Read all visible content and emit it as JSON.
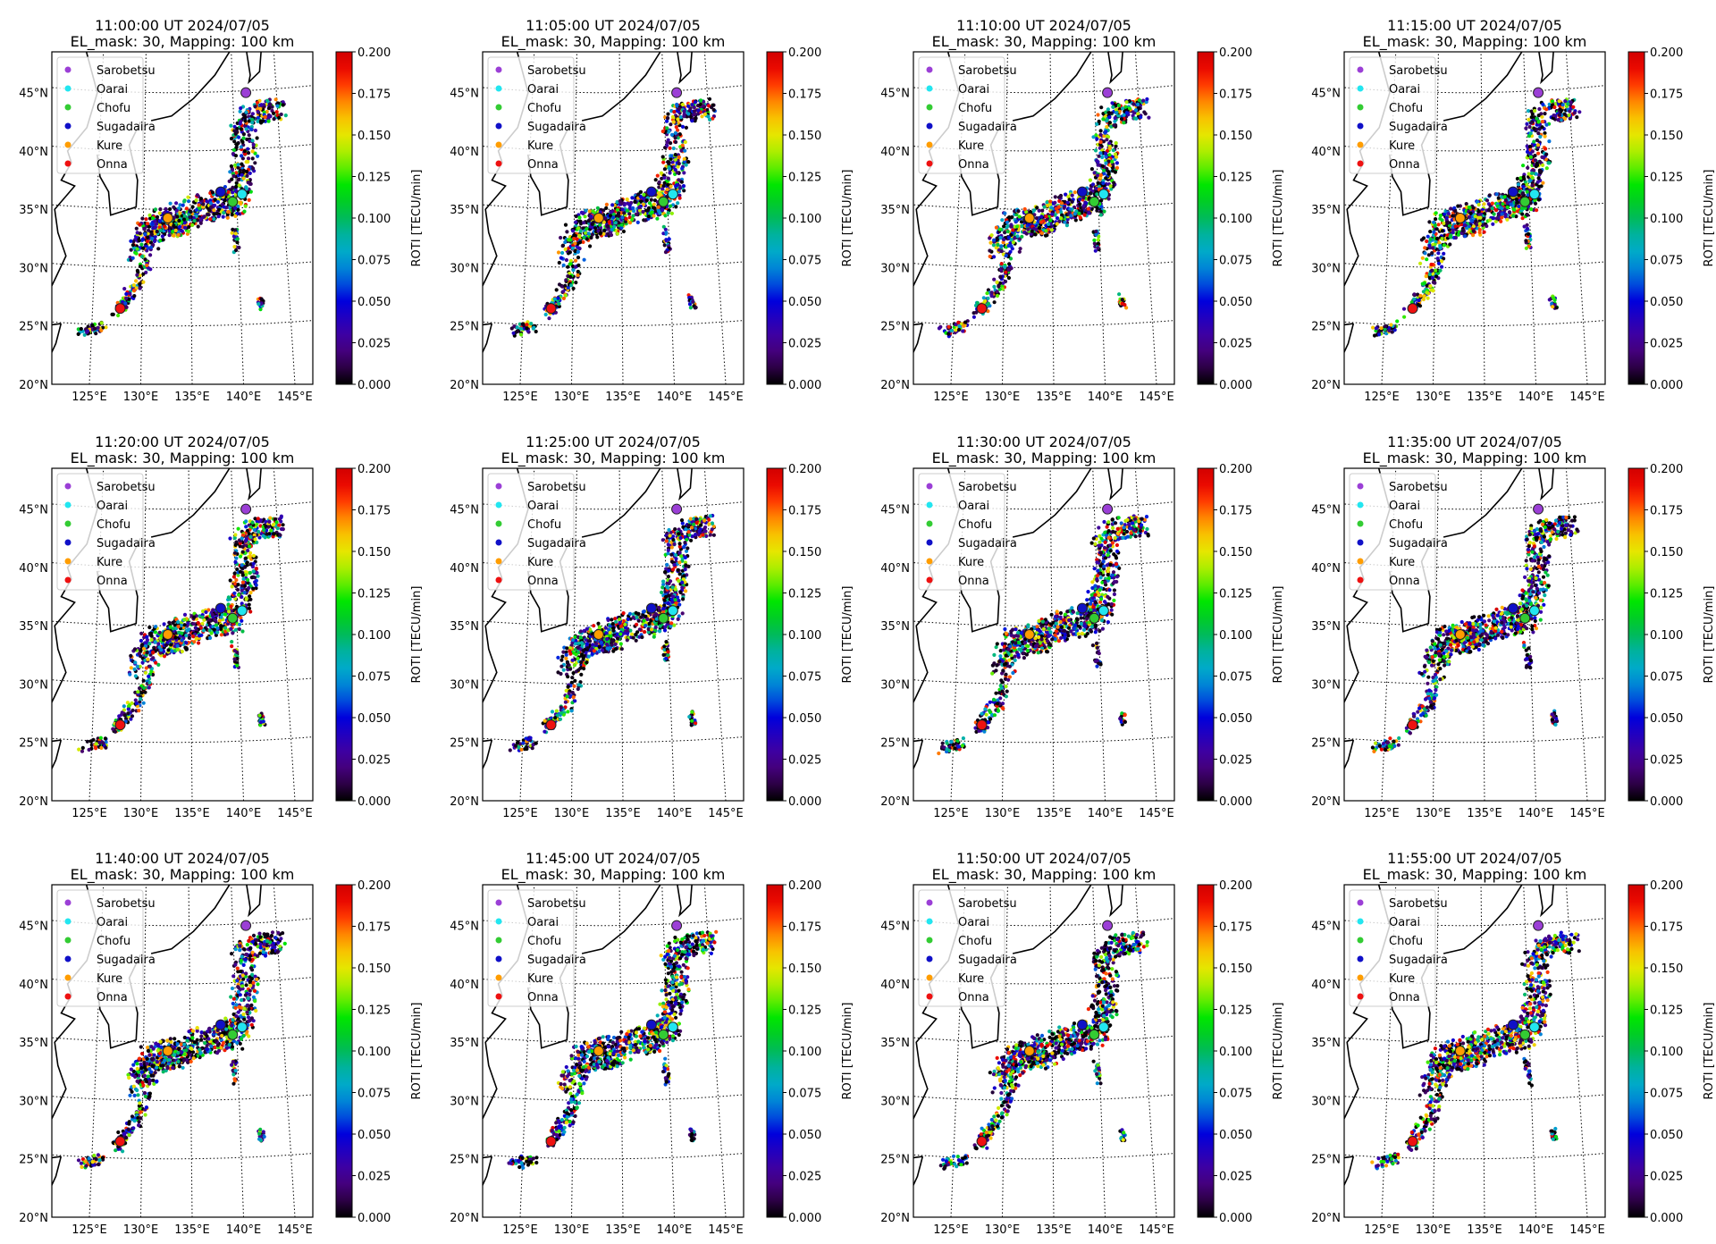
{
  "chart_data": {
    "type": "scatter",
    "colorbar": {
      "label": "ROTI [TECU/min]",
      "range": [
        0.0,
        0.2
      ],
      "ticks": [
        "0.000",
        "0.025",
        "0.050",
        "0.075",
        "0.100",
        "0.125",
        "0.150",
        "0.175",
        "0.200"
      ],
      "colormap": "nipy_spectral"
    },
    "axes": {
      "lat_ticks": [
        "20°N",
        "25°N",
        "30°N",
        "35°N",
        "40°N",
        "45°N"
      ],
      "lon_ticks": [
        "125°E",
        "130°E",
        "135°E",
        "140°E",
        "145°E"
      ],
      "lat_range": [
        20,
        48
      ],
      "lon_range": [
        120,
        146
      ],
      "grid": true
    },
    "legend": {
      "placement": "upper-left",
      "stations": [
        {
          "name": "Sarobetsu",
          "color": "#9b3fd6"
        },
        {
          "name": "Oarai",
          "color": "#22e6f0"
        },
        {
          "name": "Chofu",
          "color": "#33cc33"
        },
        {
          "name": "Sugadaira",
          "color": "#1010c8"
        },
        {
          "name": "Kure",
          "color": "#ff9d00"
        },
        {
          "name": "Onna",
          "color": "#ee1111"
        }
      ]
    },
    "panels": [
      {
        "time": "11:00:00 UT 2024/07/05",
        "subtitle": "EL_mask: 30, Mapping: 100 km"
      },
      {
        "time": "11:05:00 UT 2024/07/05",
        "subtitle": "EL_mask: 30, Mapping: 100 km"
      },
      {
        "time": "11:10:00 UT 2024/07/05",
        "subtitle": "EL_mask: 30, Mapping: 100 km"
      },
      {
        "time": "11:15:00 UT 2024/07/05",
        "subtitle": "EL_mask: 30, Mapping: 100 km"
      },
      {
        "time": "11:20:00 UT 2024/07/05",
        "subtitle": "EL_mask: 30, Mapping: 100 km"
      },
      {
        "time": "11:25:00 UT 2024/07/05",
        "subtitle": "EL_mask: 30, Mapping: 100 km"
      },
      {
        "time": "11:30:00 UT 2024/07/05",
        "subtitle": "EL_mask: 30, Mapping: 100 km"
      },
      {
        "time": "11:35:00 UT 2024/07/05",
        "subtitle": "EL_mask: 30, Mapping: 100 km"
      },
      {
        "time": "11:40:00 UT 2024/07/05",
        "subtitle": "EL_mask: 30, Mapping: 100 km"
      },
      {
        "time": "11:45:00 UT 2024/07/05",
        "subtitle": "EL_mask: 30, Mapping: 100 km"
      },
      {
        "time": "11:50:00 UT 2024/07/05",
        "subtitle": "EL_mask: 30, Mapping: 100 km"
      },
      {
        "time": "11:55:00 UT 2024/07/05",
        "subtitle": "EL_mask: 30, Mapping: 100 km"
      }
    ]
  }
}
